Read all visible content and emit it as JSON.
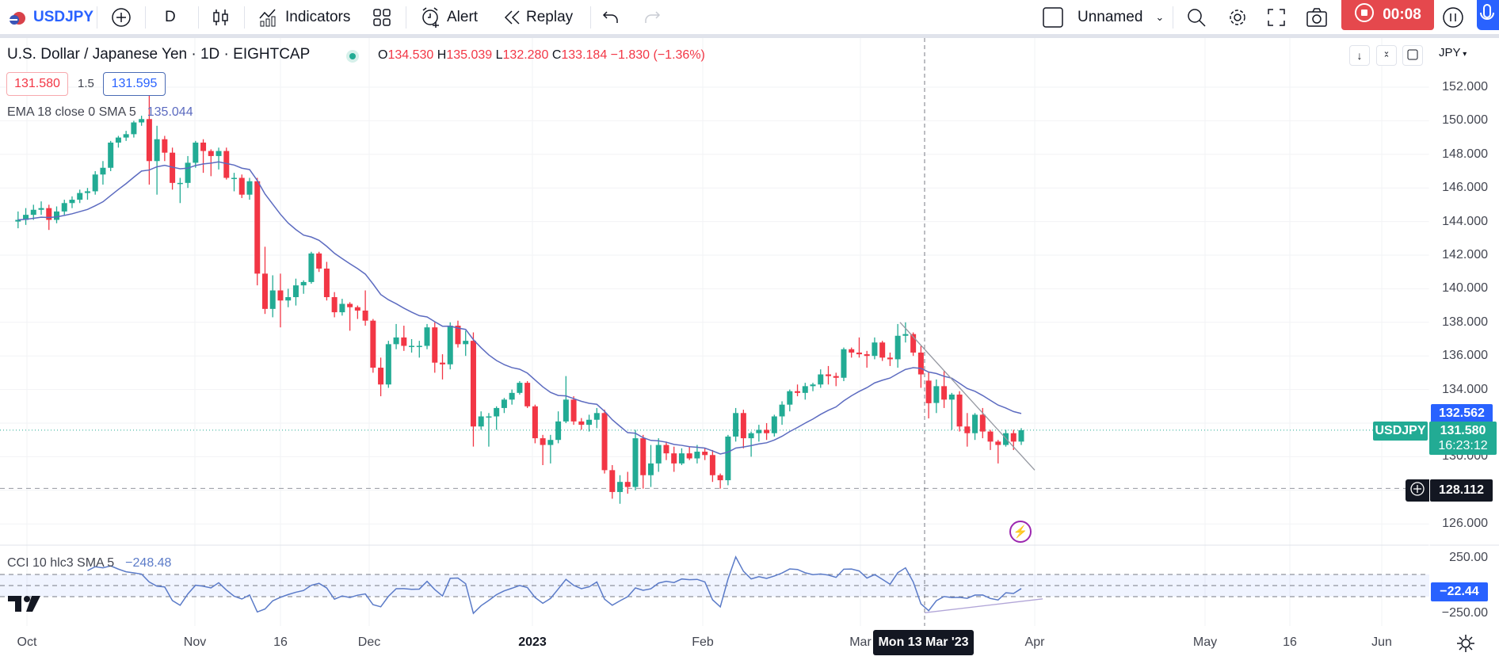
{
  "toolbar": {
    "symbol": "USDJPY",
    "interval": "D",
    "indicators_label": "Indicators",
    "alert_label": "Alert",
    "replay_label": "Replay",
    "layout_name": "Unnamed",
    "recording_time": "00:08"
  },
  "legend": {
    "title": "U.S. Dollar / Japanese Yen · 1D · EIGHTCAP",
    "o_label": "O",
    "o": "134.530",
    "h_label": "H",
    "h": "135.039",
    "l_label": "L",
    "l": "132.280",
    "c_label": "C",
    "c": "133.184",
    "change": "−1.830 (−1.36%)",
    "sell_price": "131.580",
    "spread": "1.5",
    "buy_price": "131.595",
    "ema_label": "EMA 18 close 0 SMA 5",
    "ema_value": "135.044",
    "cci_label": "CCI 10 hlc3 SMA 5",
    "cci_value": "−248.48"
  },
  "price_axis": {
    "currency": "JPY",
    "ticks": [
      "152.000",
      "150.000",
      "148.000",
      "146.000",
      "144.000",
      "142.000",
      "140.000",
      "138.000",
      "136.000",
      "134.000",
      "132.000",
      "130.000",
      "128.000",
      "126.000"
    ],
    "ema_tag": "132.562",
    "symbol_tag": "USDJPY",
    "last_price": "131.580",
    "countdown": "16:23:12",
    "crosshair_price": "128.112",
    "cci_ticks": [
      "250.00",
      "−250.00"
    ],
    "cci_tag": "−22.44"
  },
  "time_axis": {
    "labels": [
      "Oct",
      "Nov",
      "16",
      "Dec",
      "2023",
      "Feb",
      "Mar",
      "Apr",
      "May",
      "16",
      "Jun"
    ],
    "crosshair_date": "Mon 13 Mar '23"
  },
  "colors": {
    "up": "#22ab94",
    "down": "#f23645",
    "ema": "#5c6bc0",
    "cci": "#5b7bc8",
    "accent": "#2962ff"
  },
  "chart_data": {
    "type": "candlestick",
    "symbol": "USDJPY",
    "price_range": [
      125,
      153
    ],
    "cci_range": [
      -300,
      300
    ],
    "cci_band": [
      -100,
      100
    ],
    "candles": [
      [
        144.0,
        144.6,
        143.6,
        144.1
      ],
      [
        144.1,
        144.8,
        143.8,
        144.4
      ],
      [
        144.4,
        145.0,
        144.1,
        144.7
      ],
      [
        144.7,
        145.2,
        144.4,
        144.8
      ],
      [
        144.8,
        145.0,
        143.5,
        144.1
      ],
      [
        144.1,
        144.9,
        143.9,
        144.6
      ],
      [
        144.6,
        145.3,
        144.4,
        145.1
      ],
      [
        145.1,
        145.5,
        144.8,
        145.3
      ],
      [
        145.3,
        145.9,
        145.1,
        145.7
      ],
      [
        145.7,
        146.0,
        145.3,
        145.8
      ],
      [
        145.8,
        147.0,
        145.6,
        146.8
      ],
      [
        146.8,
        147.6,
        146.2,
        147.2
      ],
      [
        147.2,
        148.8,
        147.0,
        148.7
      ],
      [
        148.7,
        149.1,
        148.4,
        149.0
      ],
      [
        149.0,
        149.4,
        148.8,
        149.2
      ],
      [
        149.2,
        150.0,
        149.0,
        149.9
      ],
      [
        149.9,
        150.3,
        149.7,
        150.1
      ],
      [
        150.1,
        151.9,
        146.2,
        147.6
      ],
      [
        147.6,
        149.7,
        145.6,
        148.9
      ],
      [
        148.9,
        149.1,
        147.6,
        148.1
      ],
      [
        148.1,
        148.4,
        145.9,
        146.3
      ],
      [
        146.3,
        146.6,
        145.1,
        146.3
      ],
      [
        146.3,
        147.9,
        146.0,
        147.5
      ],
      [
        147.5,
        148.8,
        147.2,
        148.7
      ],
      [
        148.7,
        148.9,
        146.9,
        148.2
      ],
      [
        148.2,
        148.3,
        146.7,
        147.9
      ],
      [
        147.9,
        148.4,
        147.1,
        148.2
      ],
      [
        148.2,
        148.4,
        146.5,
        146.6
      ],
      [
        146.6,
        146.9,
        145.8,
        146.6
      ],
      [
        146.6,
        146.8,
        145.4,
        145.6
      ],
      [
        145.6,
        146.6,
        145.3,
        146.4
      ],
      [
        146.4,
        146.6,
        140.2,
        140.9
      ],
      [
        140.9,
        142.5,
        138.5,
        138.8
      ],
      [
        138.8,
        140.8,
        138.3,
        139.9
      ],
      [
        139.9,
        140.9,
        137.7,
        139.3
      ],
      [
        139.3,
        140.0,
        138.9,
        139.5
      ],
      [
        139.5,
        140.6,
        139.0,
        140.2
      ],
      [
        140.2,
        140.5,
        139.7,
        140.4
      ],
      [
        140.4,
        142.2,
        140.3,
        142.1
      ],
      [
        142.1,
        142.2,
        141.0,
        141.2
      ],
      [
        141.2,
        141.6,
        139.3,
        139.5
      ],
      [
        139.5,
        139.8,
        138.3,
        138.6
      ],
      [
        138.6,
        139.4,
        138.4,
        139.1
      ],
      [
        139.1,
        139.2,
        137.5,
        138.9
      ],
      [
        138.9,
        139.0,
        138.2,
        138.7
      ],
      [
        138.7,
        139.9,
        137.8,
        138.1
      ],
      [
        138.1,
        138.2,
        135.0,
        135.3
      ],
      [
        135.3,
        135.9,
        133.6,
        134.3
      ],
      [
        134.3,
        136.9,
        134.1,
        136.7
      ],
      [
        136.7,
        137.9,
        136.4,
        137.1
      ],
      [
        137.1,
        137.8,
        136.3,
        136.6
      ],
      [
        136.6,
        137.0,
        136.2,
        136.6
      ],
      [
        136.6,
        136.9,
        135.9,
        136.6
      ],
      [
        136.6,
        137.9,
        136.4,
        137.7
      ],
      [
        137.7,
        138.0,
        135.0,
        135.6
      ],
      [
        135.6,
        136.1,
        134.6,
        135.5
      ],
      [
        135.5,
        138.0,
        135.2,
        137.8
      ],
      [
        137.8,
        138.1,
        136.5,
        136.7
      ],
      [
        136.7,
        137.5,
        136.0,
        136.9
      ],
      [
        136.9,
        137.4,
        130.6,
        131.8
      ],
      [
        131.8,
        132.7,
        131.6,
        132.4
      ],
      [
        132.4,
        132.6,
        130.6,
        132.4
      ],
      [
        132.4,
        133.0,
        131.6,
        132.9
      ],
      [
        132.9,
        133.5,
        132.6,
        133.4
      ],
      [
        133.4,
        134.0,
        133.1,
        133.8
      ],
      [
        133.8,
        134.5,
        133.7,
        134.4
      ],
      [
        134.4,
        134.5,
        132.9,
        133.0
      ],
      [
        133.0,
        133.1,
        130.8,
        131.1
      ],
      [
        131.1,
        131.3,
        129.5,
        130.7
      ],
      [
        130.7,
        131.3,
        129.6,
        131.0
      ],
      [
        131.0,
        132.7,
        130.8,
        132.1
      ],
      [
        132.1,
        134.8,
        132.0,
        133.4
      ],
      [
        133.4,
        133.6,
        131.9,
        132.1
      ],
      [
        132.1,
        132.3,
        131.6,
        131.9
      ],
      [
        131.9,
        132.5,
        131.5,
        132.2
      ],
      [
        132.2,
        132.9,
        131.7,
        132.6
      ],
      [
        132.6,
        132.8,
        129.0,
        129.2
      ],
      [
        129.2,
        129.5,
        127.5,
        127.9
      ],
      [
        127.9,
        128.9,
        127.2,
        128.5
      ],
      [
        128.5,
        129.1,
        127.8,
        128.2
      ],
      [
        128.2,
        131.6,
        128.0,
        131.1
      ],
      [
        131.1,
        131.3,
        128.1,
        128.9
      ],
      [
        128.9,
        130.7,
        128.2,
        129.6
      ],
      [
        129.6,
        131.1,
        129.1,
        130.7
      ],
      [
        130.7,
        130.9,
        129.8,
        130.2
      ],
      [
        130.2,
        130.6,
        129.1,
        129.6
      ],
      [
        129.6,
        130.5,
        129.5,
        130.2
      ],
      [
        130.2,
        130.6,
        129.8,
        129.9
      ],
      [
        129.9,
        130.7,
        129.6,
        130.3
      ],
      [
        130.3,
        130.5,
        129.8,
        130.1
      ],
      [
        130.1,
        130.4,
        128.5,
        128.9
      ],
      [
        128.9,
        129.0,
        128.1,
        128.6
      ],
      [
        128.6,
        131.3,
        128.3,
        131.2
      ],
      [
        131.2,
        132.9,
        130.9,
        132.6
      ],
      [
        132.6,
        132.8,
        130.5,
        131.1
      ],
      [
        131.1,
        131.5,
        130.0,
        131.4
      ],
      [
        131.4,
        131.9,
        130.9,
        131.6
      ],
      [
        131.6,
        132.0,
        131.0,
        131.4
      ],
      [
        131.4,
        132.5,
        131.2,
        132.4
      ],
      [
        132.4,
        133.3,
        131.9,
        133.1
      ],
      [
        133.1,
        134.0,
        132.7,
        133.9
      ],
      [
        133.9,
        134.3,
        133.6,
        133.8
      ],
      [
        133.8,
        134.4,
        133.4,
        134.2
      ],
      [
        134.2,
        134.4,
        133.9,
        134.3
      ],
      [
        134.3,
        135.2,
        134.1,
        134.9
      ],
      [
        134.9,
        135.4,
        134.3,
        134.8
      ],
      [
        134.8,
        135.0,
        134.2,
        134.7
      ],
      [
        134.7,
        136.5,
        134.5,
        136.4
      ],
      [
        136.4,
        136.5,
        135.9,
        136.2
      ],
      [
        136.2,
        137.1,
        135.9,
        136.1
      ],
      [
        136.1,
        136.3,
        135.3,
        136.0
      ],
      [
        136.0,
        137.1,
        135.8,
        136.8
      ],
      [
        136.8,
        136.9,
        135.7,
        135.9
      ],
      [
        135.9,
        136.2,
        135.4,
        135.8
      ],
      [
        135.8,
        137.9,
        135.3,
        137.2
      ],
      [
        137.2,
        138.0,
        136.8,
        137.3
      ],
      [
        137.3,
        137.4,
        136.0,
        136.2
      ],
      [
        136.2,
        136.6,
        134.1,
        134.9
      ],
      [
        134.53,
        135.039,
        132.28,
        133.184
      ],
      [
        133.2,
        134.6,
        132.6,
        134.2
      ],
      [
        134.2,
        135.1,
        132.9,
        133.4
      ],
      [
        133.4,
        133.8,
        131.6,
        133.7
      ],
      [
        133.7,
        133.9,
        131.5,
        131.8
      ],
      [
        131.8,
        132.6,
        130.6,
        131.4
      ],
      [
        131.4,
        132.6,
        131.0,
        132.5
      ],
      [
        132.5,
        132.9,
        131.1,
        131.5
      ],
      [
        131.5,
        131.6,
        130.4,
        130.9
      ],
      [
        130.9,
        131.0,
        129.6,
        130.7
      ],
      [
        130.7,
        131.6,
        130.6,
        131.4
      ],
      [
        131.4,
        131.6,
        130.4,
        130.9
      ],
      [
        130.9,
        131.7,
        130.7,
        131.58
      ]
    ],
    "price_trendline": [
      [
        138.0,
        0
      ],
      [
        129.2,
        1
      ]
    ],
    "horizontal_line": 128.112
  }
}
